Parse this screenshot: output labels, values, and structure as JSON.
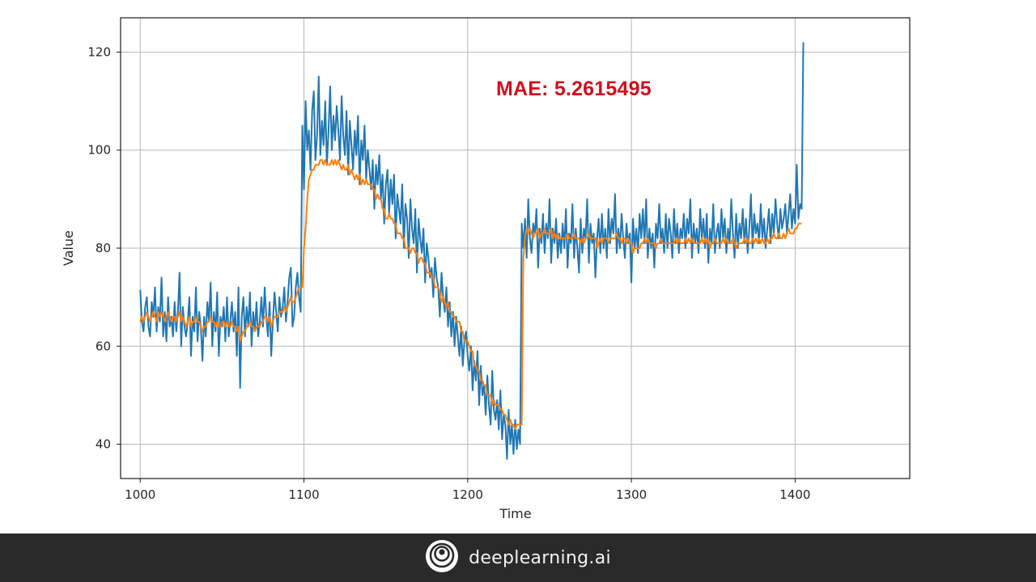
{
  "chart_data": {
    "type": "line",
    "title": "",
    "xlabel": "Time",
    "ylabel": "Value",
    "xlim": [
      988,
      1470
    ],
    "ylim": [
      33,
      127
    ],
    "x_ticks": [
      1000,
      1100,
      1200,
      1300,
      1400
    ],
    "y_ticks": [
      40,
      60,
      80,
      100,
      120
    ],
    "grid": true,
    "legend": "none",
    "annotation": "MAE: 5.2615495",
    "series": [
      {
        "color": "#1f77b4",
        "x_start": 1000,
        "values": [
          71.5,
          65,
          63,
          68,
          70,
          64,
          62,
          69,
          66,
          72,
          63,
          68,
          65,
          74,
          62,
          67,
          61,
          70,
          64,
          66,
          62,
          69,
          63,
          67,
          75,
          60,
          68,
          64,
          62,
          65,
          70,
          58,
          66,
          63,
          72,
          61,
          67,
          64,
          57,
          66,
          62,
          69,
          65,
          73,
          60,
          67,
          63,
          71,
          58,
          66,
          64,
          68,
          61,
          70,
          62,
          65,
          69,
          63,
          67,
          58,
          72,
          51.5,
          66,
          70,
          62,
          68,
          64,
          71,
          60,
          67,
          63,
          69,
          62,
          65,
          70,
          64,
          72,
          66,
          62,
          69,
          58,
          65,
          71,
          67,
          63,
          70,
          66,
          68,
          72,
          65,
          69,
          74,
          76,
          64,
          66,
          72,
          75,
          70,
          67,
          105,
          92,
          110,
          100,
          104,
          96,
          108,
          112,
          98,
          103,
          115,
          99,
          106,
          101,
          110,
          97,
          104,
          113,
          100,
          107,
          102,
          109,
          104,
          98,
          111,
          103,
          99,
          108,
          95,
          106,
          101,
          96,
          104,
          99,
          107,
          93,
          102,
          98,
          105,
          94,
          100,
          96,
          92,
          98,
          88,
          97,
          93,
          99,
          90,
          95,
          85,
          93,
          96,
          87,
          94,
          89,
          95,
          82,
          91,
          88,
          85,
          93,
          80,
          89,
          86,
          78,
          90,
          84,
          81,
          88,
          75,
          86,
          82,
          79,
          84,
          73,
          81,
          78,
          74,
          76,
          70,
          78,
          74,
          72,
          66,
          75,
          70,
          67,
          72,
          64,
          69,
          62,
          67,
          60,
          66,
          62,
          58,
          64,
          56,
          61,
          63,
          58,
          55,
          60,
          51,
          57,
          53,
          59,
          48,
          56,
          50,
          52,
          46,
          54,
          48,
          44,
          55,
          47,
          45,
          49,
          43,
          51,
          41,
          46,
          44,
          37,
          47,
          40,
          44,
          38,
          45,
          39,
          43,
          40,
          85,
          80,
          86,
          78,
          90,
          82,
          79,
          85,
          83,
          88,
          76,
          84,
          81,
          87,
          79,
          85,
          82,
          90,
          77,
          84,
          81,
          86,
          78,
          83,
          79,
          85,
          80,
          88,
          76,
          83,
          81,
          89,
          78,
          84,
          80,
          75,
          86,
          79,
          84,
          82,
          90,
          77,
          85,
          81,
          83,
          74,
          82,
          86,
          79,
          87,
          80,
          84,
          78,
          88,
          81,
          86,
          83,
          91,
          79,
          84,
          80,
          87,
          82,
          78,
          85,
          81,
          83,
          73,
          86,
          80,
          84,
          79,
          87,
          82,
          88,
          81,
          90,
          78,
          84,
          80,
          83,
          76,
          85,
          82,
          89,
          81,
          84,
          79,
          87,
          80,
          86,
          83,
          78,
          88,
          81,
          85,
          79,
          84,
          82,
          87,
          80,
          86,
          83,
          90,
          78,
          85,
          81,
          84,
          79,
          88,
          82,
          86,
          80,
          87,
          77,
          84,
          81,
          89,
          79,
          83,
          85,
          80,
          88,
          82,
          86,
          79,
          84,
          81,
          90,
          83,
          78,
          87,
          80,
          85,
          82,
          88,
          81,
          86,
          79,
          84,
          91,
          80,
          87,
          83,
          85,
          81,
          89,
          82,
          86,
          80,
          84,
          88,
          81,
          87,
          83,
          90,
          85,
          82,
          88,
          84,
          86,
          89,
          83,
          87,
          91,
          84,
          88,
          85,
          97,
          86,
          89,
          88,
          122
        ]
      },
      {
        "color": "#ff7f0e",
        "x_start": 1000,
        "values": [
          65,
          66,
          65,
          66,
          67,
          66,
          65,
          66,
          67,
          66,
          65,
          67,
          66,
          67,
          66,
          65,
          66,
          67,
          66,
          65,
          66,
          66,
          65,
          66,
          67,
          65,
          66,
          65,
          64,
          65,
          66,
          64,
          65,
          65,
          66,
          65,
          65,
          64,
          63,
          64,
          64,
          65,
          65,
          66,
          65,
          65,
          64,
          65,
          64,
          64,
          65,
          65,
          64,
          65,
          64,
          64,
          65,
          64,
          64,
          63,
          64,
          61,
          62,
          63,
          63,
          64,
          64,
          65,
          64,
          64,
          63,
          64,
          64,
          64,
          65,
          65,
          66,
          66,
          65,
          66,
          64,
          65,
          66,
          66,
          66,
          67,
          67,
          67,
          68,
          67,
          68,
          69,
          70,
          69,
          69,
          70,
          71,
          72,
          72,
          72,
          80,
          84,
          90,
          94,
          95,
          96,
          96,
          97,
          97,
          97,
          98,
          98,
          97,
          98,
          97,
          97,
          97,
          98,
          97,
          98,
          97,
          98,
          97,
          96,
          97,
          96,
          96,
          97,
          95,
          96,
          95,
          94,
          95,
          94,
          95,
          93,
          94,
          93,
          94,
          93,
          93,
          93,
          92,
          92,
          90,
          91,
          90,
          90,
          88,
          88,
          86,
          86,
          87,
          86,
          86,
          85,
          85,
          83,
          83,
          83,
          82,
          82,
          80,
          80,
          80,
          79,
          80,
          80,
          79,
          79,
          77,
          78,
          78,
          77,
          77,
          75,
          75,
          75,
          74,
          74,
          72,
          72,
          72,
          71,
          69,
          70,
          69,
          68,
          69,
          67,
          67,
          66,
          66,
          65,
          65,
          65,
          63,
          63,
          61,
          61,
          61,
          60,
          59,
          59,
          56,
          56,
          55,
          55,
          53,
          53,
          52,
          52,
          50,
          50,
          50,
          48,
          49,
          48,
          48,
          48,
          47,
          47,
          46,
          46,
          45,
          44,
          45,
          44,
          44,
          43,
          44,
          44,
          44,
          44,
          78,
          82,
          84,
          83,
          84,
          83,
          82,
          83,
          83,
          84,
          82,
          83,
          83,
          84,
          83,
          83,
          83,
          84,
          82,
          83,
          82,
          83,
          82,
          82,
          82,
          82,
          82,
          83,
          82,
          82,
          82,
          83,
          82,
          82,
          82,
          81,
          82,
          81,
          82,
          82,
          83,
          82,
          82,
          82,
          82,
          80,
          81,
          82,
          81,
          82,
          82,
          82,
          81,
          82,
          82,
          82,
          82,
          83,
          82,
          82,
          81,
          82,
          82,
          81,
          82,
          81,
          81,
          79,
          80,
          80,
          80,
          80,
          81,
          81,
          82,
          81,
          82,
          81,
          81,
          81,
          81,
          80,
          81,
          81,
          82,
          81,
          81,
          81,
          81,
          81,
          81,
          81,
          81,
          82,
          81,
          82,
          81,
          81,
          81,
          82,
          81,
          82,
          81,
          82,
          81,
          81,
          81,
          81,
          81,
          82,
          81,
          82,
          81,
          82,
          80,
          81,
          81,
          82,
          81,
          81,
          81,
          81,
          82,
          81,
          82,
          81,
          81,
          81,
          82,
          81,
          80,
          81,
          81,
          81,
          81,
          82,
          81,
          82,
          81,
          81,
          82,
          81,
          82,
          81,
          82,
          81,
          82,
          81,
          81,
          82,
          81,
          82,
          82,
          83,
          82,
          82,
          83,
          82,
          82,
          83,
          82,
          83,
          84,
          83,
          83,
          83,
          84,
          84,
          85,
          85,
          85
        ]
      }
    ]
  },
  "footer": {
    "brand": "deeplearning.ai",
    "logo_icon": "deeplearning-logo-icon"
  }
}
